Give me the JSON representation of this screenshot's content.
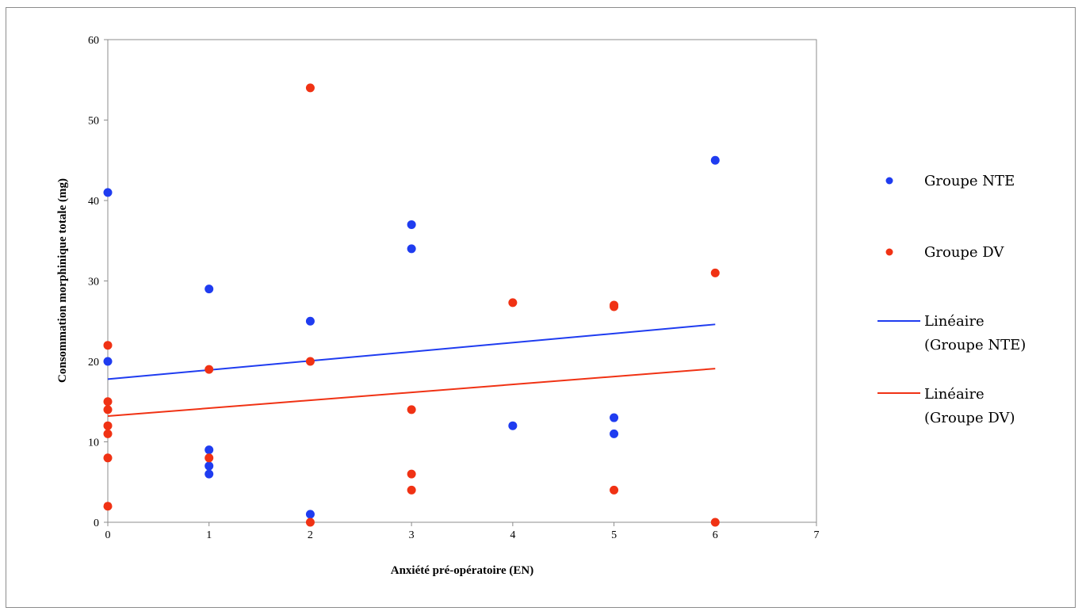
{
  "chart_data": {
    "type": "scatter",
    "xlabel": "Anxiété pré-opératoire (EN)",
    "ylabel": "Consommation morphinique totale (mg)",
    "xlim": [
      0,
      7
    ],
    "ylim": [
      0,
      60
    ],
    "xticks": [
      "0",
      "1",
      "2",
      "3",
      "4",
      "5",
      "6",
      "7"
    ],
    "yticks": [
      "0",
      "10",
      "20",
      "30",
      "40",
      "50",
      "60"
    ],
    "grid": false,
    "legend_position": "right",
    "series": [
      {
        "name": "Groupe NTE",
        "kind": "points",
        "color": "#1f3cf0",
        "points": [
          [
            0,
            41
          ],
          [
            0,
            20
          ],
          [
            1,
            29
          ],
          [
            1,
            9
          ],
          [
            1,
            7
          ],
          [
            1,
            6
          ],
          [
            2,
            25
          ],
          [
            2,
            1
          ],
          [
            3,
            37
          ],
          [
            3,
            34
          ],
          [
            4,
            12
          ],
          [
            5,
            13
          ],
          [
            5,
            11
          ],
          [
            6,
            45
          ]
        ]
      },
      {
        "name": "Groupe DV",
        "kind": "points",
        "color": "#f03214",
        "points": [
          [
            0,
            22
          ],
          [
            0,
            15
          ],
          [
            0,
            14
          ],
          [
            0,
            12
          ],
          [
            0,
            11
          ],
          [
            0,
            8
          ],
          [
            0,
            2
          ],
          [
            1,
            19
          ],
          [
            1,
            8
          ],
          [
            2,
            54
          ],
          [
            2,
            20
          ],
          [
            2,
            0
          ],
          [
            3,
            14
          ],
          [
            3,
            6
          ],
          [
            3,
            4
          ],
          [
            4,
            27.3
          ],
          [
            5,
            27
          ],
          [
            5,
            26.8
          ],
          [
            5,
            4
          ],
          [
            6,
            31
          ],
          [
            6,
            0
          ]
        ]
      },
      {
        "name": "Linéaire (Groupe NTE)",
        "kind": "line",
        "color": "#1f3cf0",
        "x": [
          0,
          6
        ],
        "y": [
          17.8,
          24.6
        ]
      },
      {
        "name": "Linéaire (Groupe DV)",
        "kind": "line",
        "color": "#f03214",
        "x": [
          0,
          6
        ],
        "y": [
          13.2,
          19.1
        ]
      }
    ]
  },
  "legend": [
    {
      "label": "Groupe NTE"
    },
    {
      "label": "Groupe DV"
    },
    {
      "label_lines": [
        "Linéaire",
        "(Groupe NTE)"
      ]
    },
    {
      "label_lines": [
        "Linéaire",
        "(Groupe DV)"
      ]
    }
  ]
}
